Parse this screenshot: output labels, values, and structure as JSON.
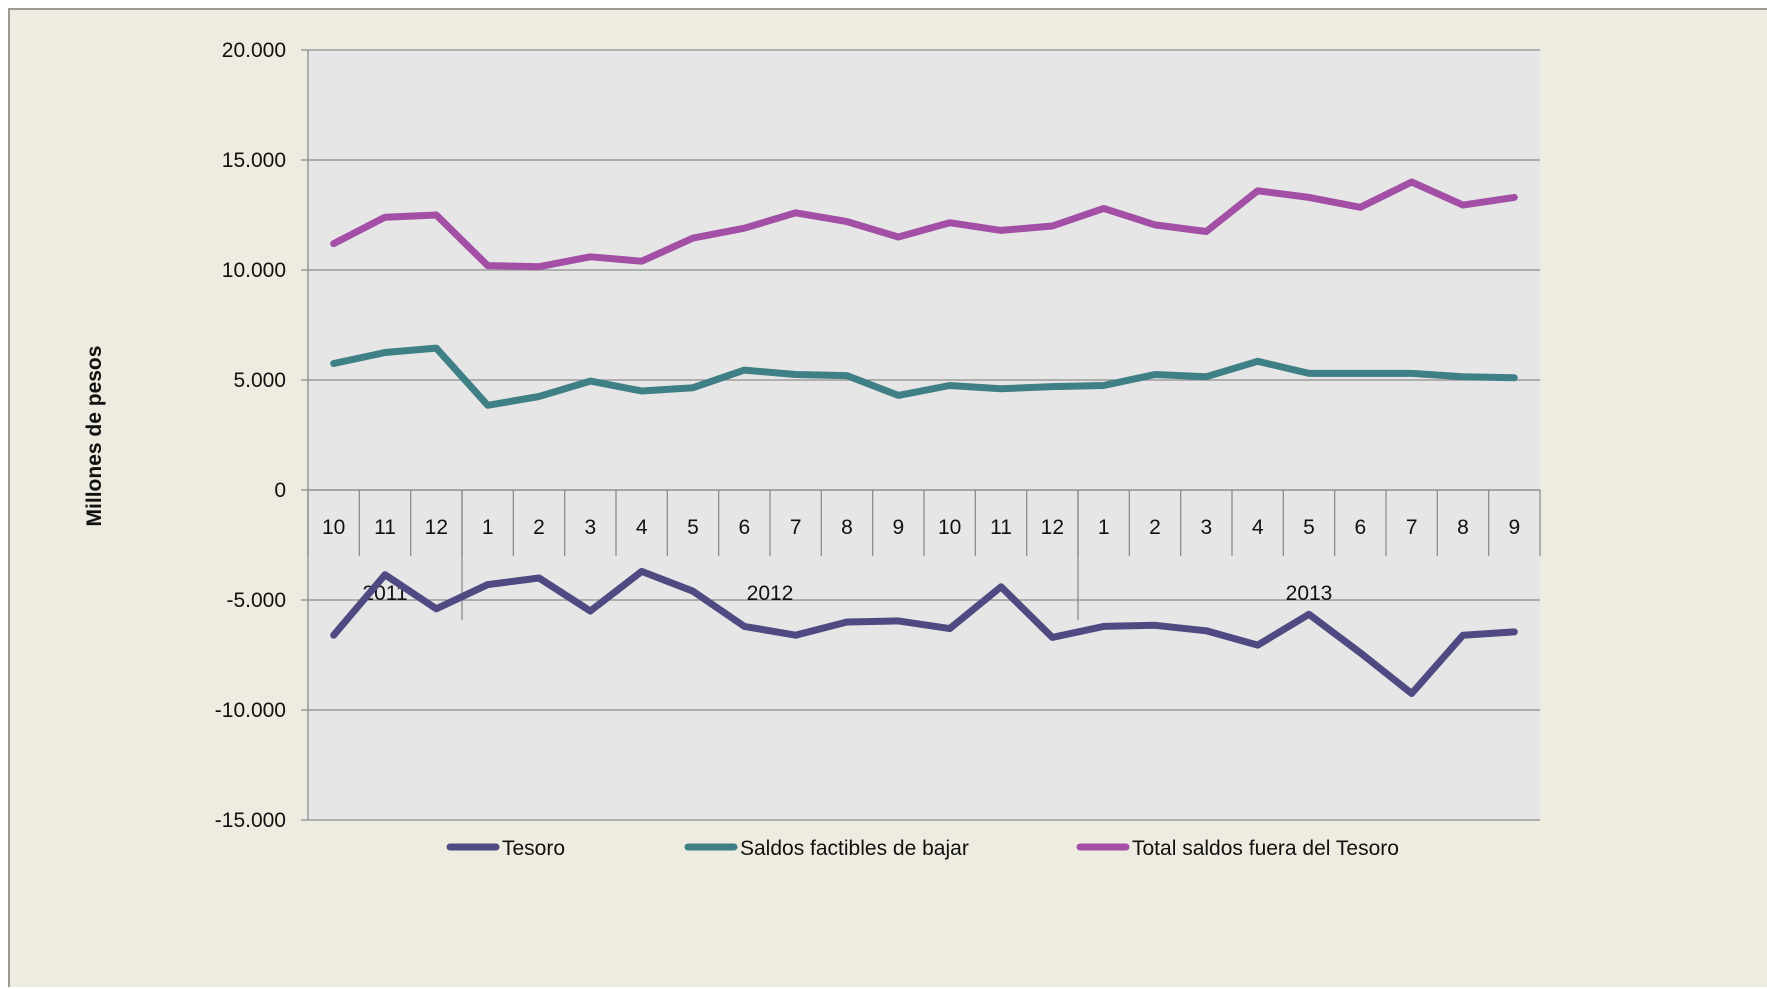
{
  "chart_data": {
    "type": "line",
    "title": "",
    "xlabel": "",
    "ylabel": "Millones de pesos",
    "ylim": [
      -15000,
      20000
    ],
    "yticks": [
      20000,
      15000,
      10000,
      5000,
      0,
      -5000,
      -10000,
      -15000
    ],
    "ytick_labels": [
      "20.000",
      "15.000",
      "10.000",
      "5.000",
      "0",
      "-5.000",
      "-10.000",
      "-15.000"
    ],
    "grid": true,
    "legend_position": "bottom",
    "categories": [
      "10",
      "11",
      "12",
      "1",
      "2",
      "3",
      "4",
      "5",
      "6",
      "7",
      "8",
      "9",
      "10",
      "11",
      "12",
      "1",
      "2",
      "3",
      "4",
      "5",
      "6",
      "7",
      "8",
      "9"
    ],
    "year_groups": [
      {
        "label": "2011",
        "count": 3
      },
      {
        "label": "2012",
        "count": 12
      },
      {
        "label": "2013",
        "count": 9
      }
    ],
    "series": [
      {
        "name": "Tesoro",
        "color": "#4f4a82",
        "values": [
          -6600,
          -3850,
          -5400,
          -4300,
          -4000,
          -5500,
          -3700,
          -4600,
          -6200,
          -6600,
          -6000,
          -5950,
          -6300,
          -4400,
          -6700,
          -6200,
          -6150,
          -6400,
          -7050,
          -5650,
          -7400,
          -9250,
          -6600,
          -6450
        ]
      },
      {
        "name": "Saldos factibles de bajar",
        "color": "#3f7f86",
        "values": [
          5750,
          6250,
          6450,
          3850,
          4250,
          4950,
          4500,
          4650,
          5450,
          5250,
          5200,
          4300,
          4750,
          4600,
          4700,
          4750,
          5250,
          5150,
          5850,
          5300,
          5300,
          5300,
          5150,
          5100
        ]
      },
      {
        "name": "Total saldos fuera del Tesoro",
        "color": "#a24fa5",
        "values": [
          11200,
          12400,
          12500,
          10200,
          10150,
          10600,
          10400,
          11450,
          11900,
          12600,
          12200,
          11500,
          12150,
          11800,
          12000,
          12800,
          12050,
          11750,
          13600,
          13300,
          12850,
          14000,
          12950,
          13300
        ]
      }
    ]
  }
}
